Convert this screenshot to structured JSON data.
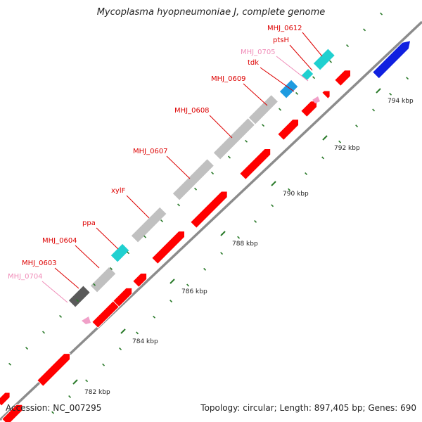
{
  "title": "Mycoplasma hyopneumoniae J, complete genome",
  "footer": {
    "accession": "Accession: NC_007295",
    "summary": "Topology: circular; Length: 897,405 bp; Genes: 690"
  },
  "colors": {
    "backbone": "#8c8c8c",
    "cds_forward": "#ff0000",
    "cds_blast": "#c0c0c0",
    "cds_dark": "#5a5a5a",
    "cds_cyan": "#20d0d0",
    "cds_blue_light": "#1e9be0",
    "cds_blue": "#1020e0",
    "cds_pink": "#f0a0c8",
    "tick_green": "#2a7a2a",
    "label_red": "#dd0000",
    "label_pink": "#f08cb8"
  },
  "scale_labels": [
    "782 kbp",
    "784 kbp",
    "786 kbp",
    "788 kbp",
    "790 kbp",
    "792 kbp",
    "794 kbp"
  ],
  "gene_labels": [
    {
      "text": "MHJ_0612",
      "color": "red"
    },
    {
      "text": "ptsH",
      "color": "red"
    },
    {
      "text": "MHJ_0705",
      "color": "pink"
    },
    {
      "text": "tdk",
      "color": "red"
    },
    {
      "text": "MHJ_0609",
      "color": "red"
    },
    {
      "text": "MHJ_0608",
      "color": "red"
    },
    {
      "text": "MHJ_0607",
      "color": "red"
    },
    {
      "text": "xylF",
      "color": "red"
    },
    {
      "text": "ppa",
      "color": "red"
    },
    {
      "text": "MHJ_0604",
      "color": "red"
    },
    {
      "text": "MHJ_0603",
      "color": "red"
    },
    {
      "text": "MHJ_0704",
      "color": "pink"
    }
  ]
}
